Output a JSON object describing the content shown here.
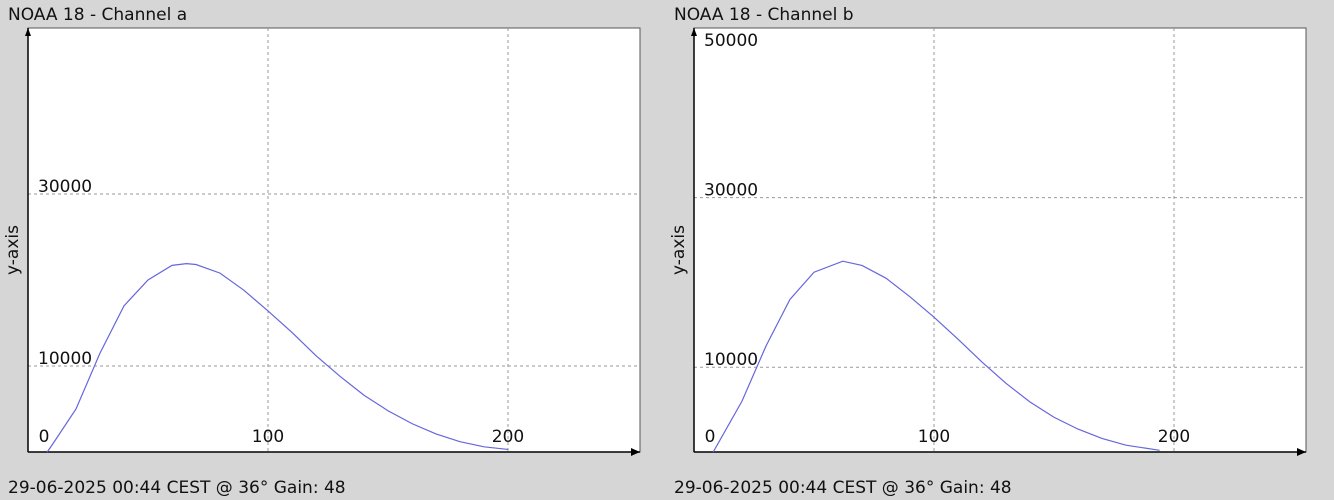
{
  "chart_data": [
    {
      "type": "line",
      "title": "NOAA 18 - Channel a",
      "ylabel": "y-axis",
      "footer": "29-06-2025 00:44 CEST @ 36° Gain: 48",
      "x": [
        8,
        10,
        20,
        30,
        40,
        50,
        60,
        66,
        70,
        80,
        90,
        100,
        110,
        120,
        130,
        140,
        150,
        160,
        170,
        180,
        190,
        200
      ],
      "values": [
        0,
        800,
        5000,
        11500,
        17000,
        20000,
        21700,
        21900,
        21800,
        20800,
        18800,
        16400,
        13900,
        11200,
        8800,
        6600,
        4800,
        3300,
        2100,
        1200,
        600,
        300
      ],
      "color": "#6666dd",
      "xlim": [
        0,
        255
      ],
      "ylim": [
        0,
        49300
      ],
      "xticks": [
        0,
        100,
        200
      ],
      "yticks": [
        10000,
        30000
      ],
      "grid": true
    },
    {
      "type": "line",
      "title": "NOAA 18 - Channel b",
      "ylabel": "y-axis",
      "footer": "29-06-2025 00:44 CEST @ 36° Gain: 48",
      "x": [
        8,
        10,
        20,
        30,
        40,
        50,
        62,
        70,
        80,
        90,
        100,
        110,
        120,
        130,
        140,
        150,
        160,
        170,
        180,
        194
      ],
      "values": [
        0,
        1000,
        6000,
        12500,
        18000,
        21200,
        22500,
        22000,
        20500,
        18300,
        15900,
        13300,
        10600,
        8100,
        5900,
        4100,
        2700,
        1600,
        800,
        200
      ],
      "color": "#6666dd",
      "xlim": [
        0,
        255
      ],
      "ylim": [
        0,
        50000
      ],
      "xticks": [
        0,
        100,
        200
      ],
      "yticks": [
        10000,
        30000,
        50000
      ],
      "grid": true
    }
  ]
}
